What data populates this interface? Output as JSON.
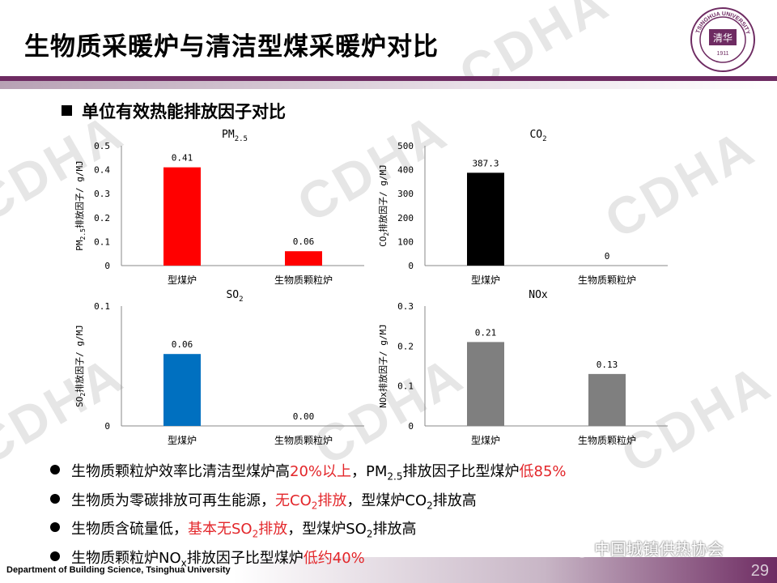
{
  "slide": {
    "title": "生物质采暖炉与清洁型煤采暖炉对比",
    "subheading": "单位有效热能排放因子对比",
    "watermark": "CDHA",
    "logo_text": "TSINGHUA UNIVERSITY",
    "logo_year": "1911"
  },
  "colors": {
    "accent": "#6e2b62",
    "red": "#ff0000",
    "black": "#000000",
    "blue": "#0070c0",
    "gray": "#7f7f7f",
    "highlight": "#e3262a"
  },
  "chart_data": [
    {
      "type": "bar",
      "title_main": "PM",
      "title_sub": "2.5",
      "ylabel_main": "PM",
      "ylabel_sub": "2.5",
      "ylabel_rest": "排放因子/ g/MJ",
      "categories": [
        "型煤炉",
        "生物质颗粒炉"
      ],
      "values": [
        0.41,
        0.06
      ],
      "value_labels": [
        "0.41",
        "0.06"
      ],
      "yticks": [
        "0",
        "0.1",
        "0.2",
        "0.3",
        "0.4",
        "0.5"
      ],
      "ylim": [
        0,
        0.5
      ],
      "bar_color": "#ff0000"
    },
    {
      "type": "bar",
      "title_main": "CO",
      "title_sub": "2",
      "ylabel_main": "CO",
      "ylabel_sub": "2",
      "ylabel_rest": "排放因子/ g/MJ",
      "categories": [
        "型煤炉",
        "生物质颗粒炉"
      ],
      "values": [
        387.3,
        0
      ],
      "value_labels": [
        "387.3",
        "0"
      ],
      "yticks": [
        "0",
        "100",
        "200",
        "300",
        "400",
        "500"
      ],
      "ylim": [
        0,
        500
      ],
      "bar_color": "#000000"
    },
    {
      "type": "bar",
      "title_main": "SO",
      "title_sub": "2",
      "ylabel_main": "SO",
      "ylabel_sub": "2",
      "ylabel_rest": "排放因子/ g/MJ",
      "categories": [
        "型煤炉",
        "生物质颗粒炉"
      ],
      "values": [
        0.06,
        0.0
      ],
      "value_labels": [
        "0.06",
        "0.00"
      ],
      "yticks": [
        "0",
        "0.1"
      ],
      "ylim": [
        0,
        0.1
      ],
      "bar_color": "#0070c0"
    },
    {
      "type": "bar",
      "title_main": "NOx",
      "title_sub": "",
      "ylabel_main": "NOx",
      "ylabel_sub": "",
      "ylabel_rest": "排放因子/ g/MJ",
      "categories": [
        "型煤炉",
        "生物质颗粒炉"
      ],
      "values": [
        0.21,
        0.13
      ],
      "value_labels": [
        "0.21",
        "0.13"
      ],
      "yticks": [
        "0",
        "0.1",
        "0.2",
        "0.3"
      ],
      "ylim": [
        0,
        0.3
      ],
      "bar_color": "#7f7f7f"
    }
  ],
  "bullets": [
    {
      "segments": [
        {
          "text": "生物质颗粒炉效率比清洁型煤炉高",
          "red": false
        },
        {
          "text": "20%以上",
          "red": true
        },
        {
          "text": "，PM",
          "red": false
        },
        {
          "text": "2.5",
          "red": false,
          "sub": true
        },
        {
          "text": "排放因子比型煤炉",
          "red": false
        },
        {
          "text": "低85%",
          "red": true
        }
      ]
    },
    {
      "segments": [
        {
          "text": "生物质为零碳排放可再生能源，",
          "red": false
        },
        {
          "text": "无CO",
          "red": true
        },
        {
          "text": "2",
          "red": true,
          "sub": true
        },
        {
          "text": "排放",
          "red": true
        },
        {
          "text": "，型煤炉CO",
          "red": false
        },
        {
          "text": "2",
          "red": false,
          "sub": true
        },
        {
          "text": "排放高",
          "red": false
        }
      ]
    },
    {
      "segments": [
        {
          "text": "生物质含硫量低，",
          "red": false
        },
        {
          "text": "基本无SO",
          "red": true
        },
        {
          "text": "2",
          "red": true,
          "sub": true
        },
        {
          "text": "排放",
          "red": true
        },
        {
          "text": "，型煤炉SO",
          "red": false
        },
        {
          "text": "2",
          "red": false,
          "sub": true
        },
        {
          "text": "排放高",
          "red": false
        }
      ]
    },
    {
      "segments": [
        {
          "text": "生物质颗粒炉NO",
          "red": false
        },
        {
          "text": "x",
          "red": false,
          "sub": true
        },
        {
          "text": "排放因子比型煤炉",
          "red": false
        },
        {
          "text": "低约40%",
          "red": true
        }
      ]
    }
  ],
  "footer": {
    "department": "Department of Building  Science, Tsinghua University",
    "page_number": "29",
    "wechat_label": "中国城镇供热协会"
  }
}
